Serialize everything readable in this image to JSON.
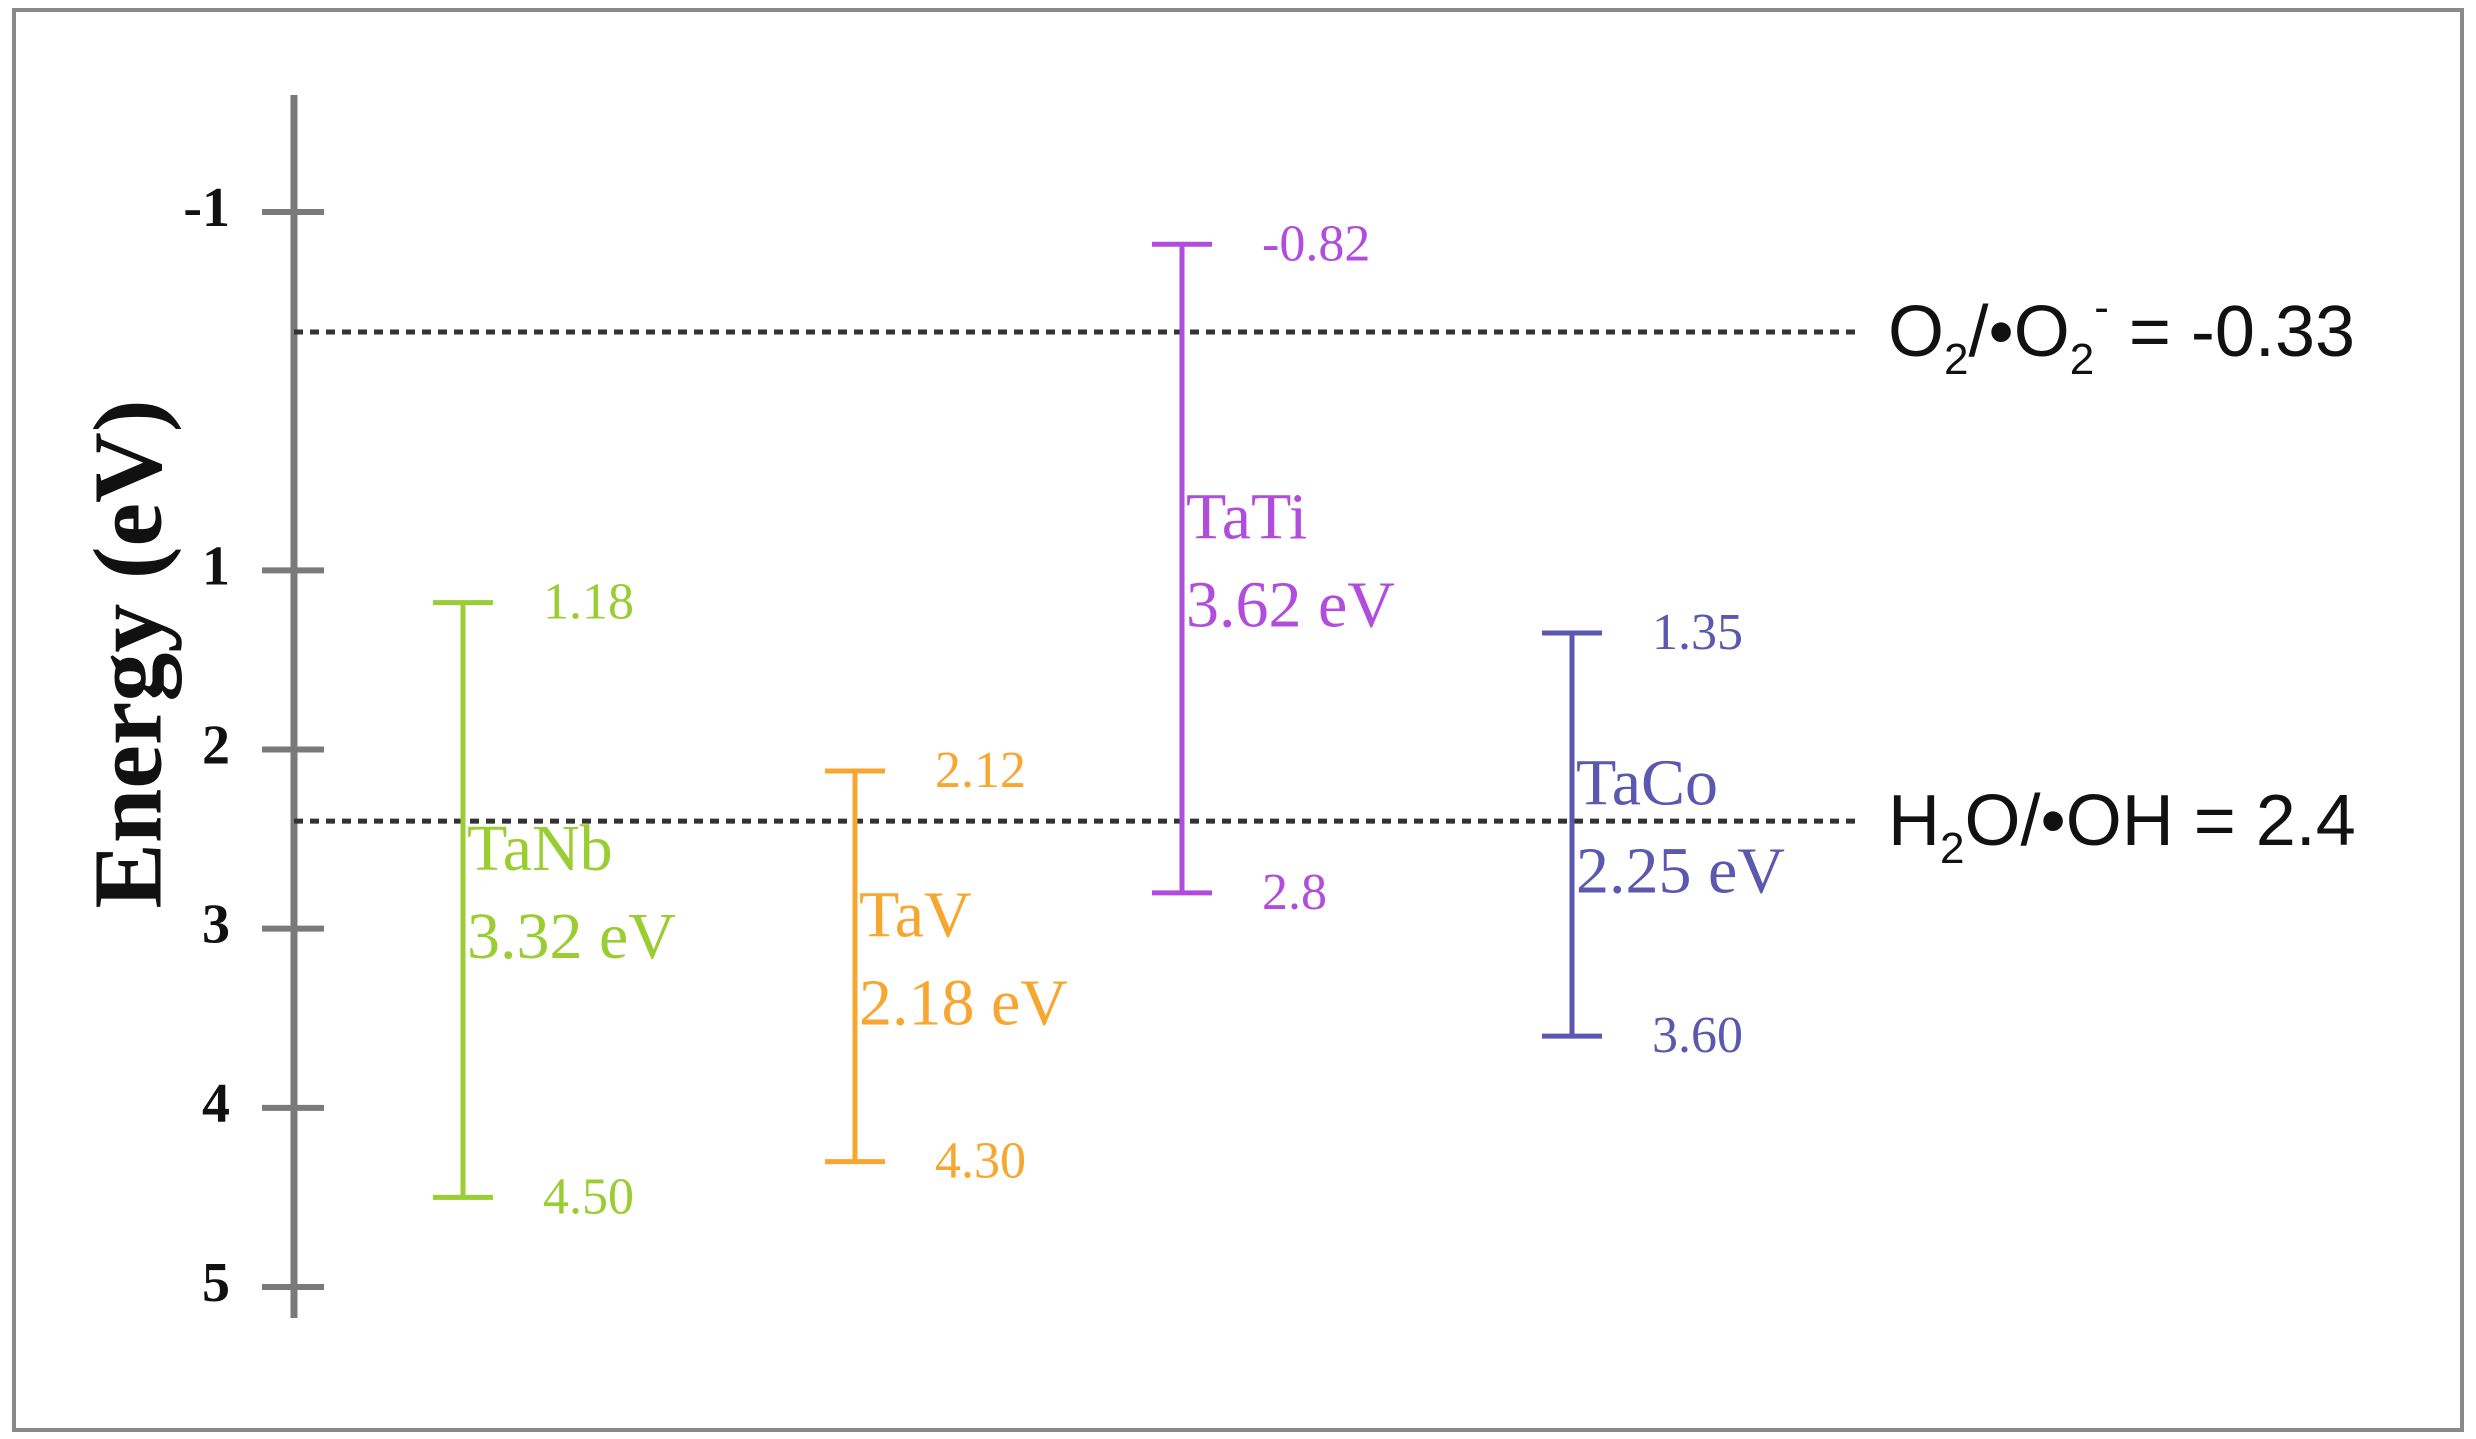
{
  "chart_data": {
    "type": "band-diagram",
    "ylabel": "Energy (eV)",
    "yticks": [
      {
        "value": -1,
        "label": "-1"
      },
      {
        "value": 1,
        "label": "1"
      },
      {
        "value": 2,
        "label": "2"
      },
      {
        "value": 3,
        "label": "3"
      },
      {
        "value": 4,
        "label": "4"
      },
      {
        "value": 5,
        "label": "5"
      }
    ],
    "ylim": [
      -1.65,
      5.2
    ],
    "inverted": true,
    "series": [
      {
        "name": "TaNb",
        "gap_label": "3.32 eV",
        "cb": 1.18,
        "vb": 4.5,
        "cb_label": "1.18",
        "vb_label": "4.50",
        "color": "#9acd32"
      },
      {
        "name": "TaV",
        "gap_label": "2.18 eV",
        "cb": 2.12,
        "vb": 4.3,
        "cb_label": "2.12",
        "vb_label": "4.30",
        "color": "#f7a630"
      },
      {
        "name": "TaTi",
        "gap_label": "3.62 eV",
        "cb": -0.82,
        "vb": 2.8,
        "cb_label": "-0.82",
        "vb_label": "2.8",
        "color": "#b14ddd"
      },
      {
        "name": "TaCo",
        "gap_label": "2.25 eV",
        "cb": 1.35,
        "vb": 3.6,
        "cb_label": "1.35",
        "vb_label": "3.60",
        "color": "#5b58b0"
      }
    ],
    "reference_lines": [
      {
        "value": -0.33,
        "species": "O",
        "sub1": "2",
        "mid": "/•O",
        "sub2": "2",
        "sup": "-",
        "value_text": " = -0.33"
      },
      {
        "value": 2.4,
        "species": "H",
        "sub1": "2",
        "mid": "O/•OH",
        "sub2": "",
        "sup": "",
        "value_text": " = 2.4"
      }
    ]
  }
}
